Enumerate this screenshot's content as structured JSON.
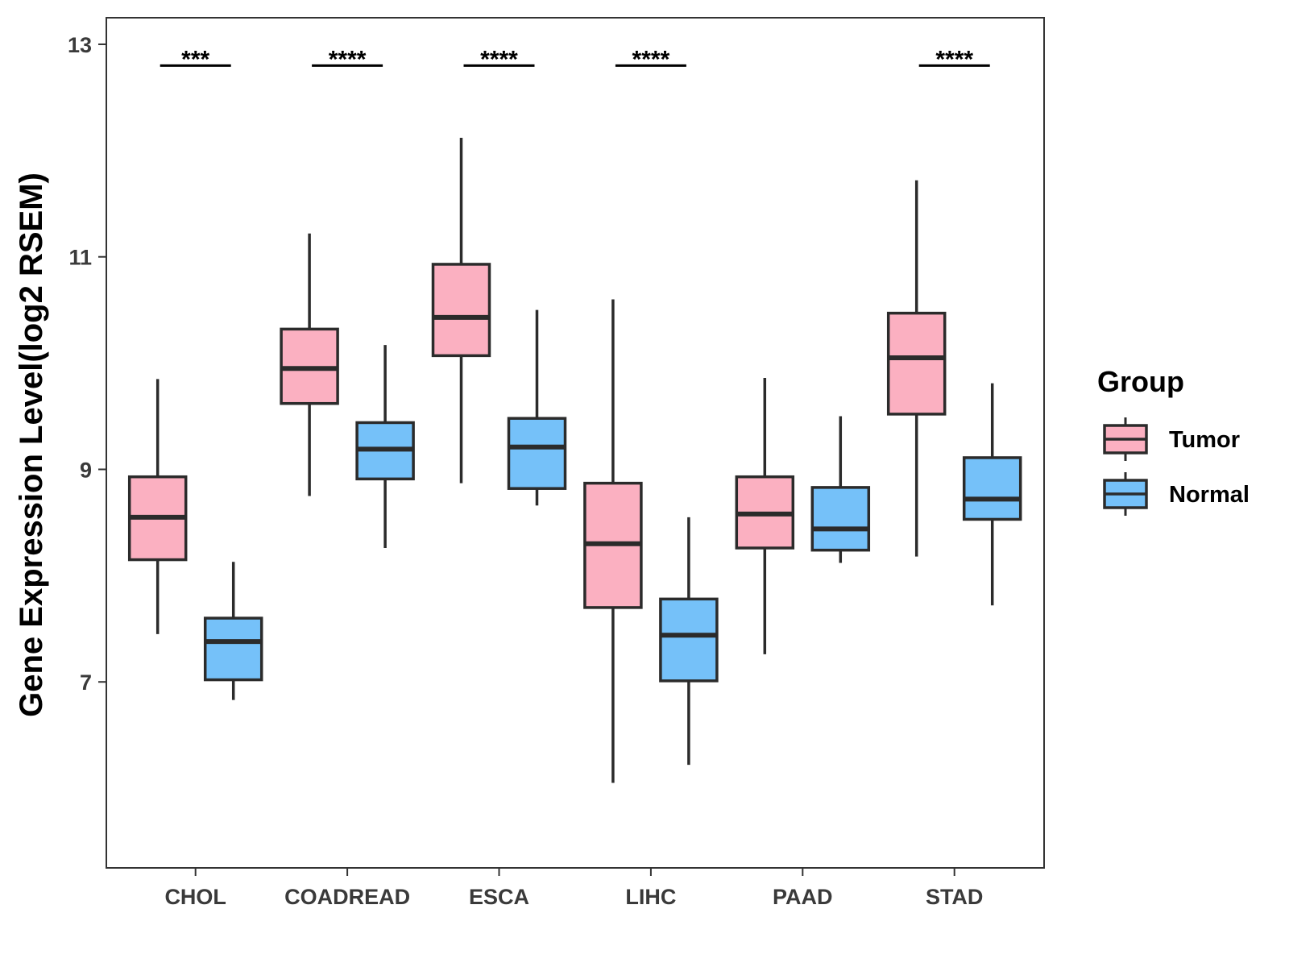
{
  "chart_data": {
    "type": "boxplot",
    "title": "",
    "xlabel": "",
    "ylabel": "Gene Expression Level(log2 RSEM)",
    "ylim": [
      5.25,
      13.25
    ],
    "yticks": [
      7,
      9,
      11,
      13
    ],
    "grid": false,
    "categories": [
      "CHOL",
      "COADREAD",
      "ESCA",
      "LIHC",
      "PAAD",
      "STAD"
    ],
    "legend": {
      "title": "Group",
      "position": "right",
      "entries": [
        {
          "name": "Tumor",
          "color": "#fbb0c1"
        },
        {
          "name": "Normal",
          "color": "#75c1f9"
        }
      ]
    },
    "series": [
      {
        "name": "Tumor",
        "color": "#fbb0c1",
        "boxes": [
          {
            "min": 7.45,
            "q1": 8.15,
            "median": 8.55,
            "q3": 8.93,
            "max": 9.85
          },
          {
            "min": 8.75,
            "q1": 9.62,
            "median": 9.95,
            "q3": 10.32,
            "max": 11.22
          },
          {
            "min": 8.87,
            "q1": 10.07,
            "median": 10.43,
            "q3": 10.93,
            "max": 12.12
          },
          {
            "min": 6.05,
            "q1": 7.7,
            "median": 8.3,
            "q3": 8.87,
            "max": 10.6
          },
          {
            "min": 7.26,
            "q1": 8.26,
            "median": 8.58,
            "q3": 8.93,
            "max": 9.86
          },
          {
            "min": 8.18,
            "q1": 9.52,
            "median": 10.05,
            "q3": 10.47,
            "max": 11.72
          }
        ]
      },
      {
        "name": "Normal",
        "color": "#75c1f9",
        "boxes": [
          {
            "min": 6.83,
            "q1": 7.02,
            "median": 7.38,
            "q3": 7.6,
            "max": 8.13
          },
          {
            "min": 8.26,
            "q1": 8.91,
            "median": 9.19,
            "q3": 9.44,
            "max": 10.17
          },
          {
            "min": 8.66,
            "q1": 8.82,
            "median": 9.21,
            "q3": 9.48,
            "max": 10.5
          },
          {
            "min": 6.22,
            "q1": 7.01,
            "median": 7.44,
            "q3": 7.78,
            "max": 8.55
          },
          {
            "min": 8.12,
            "q1": 8.24,
            "median": 8.44,
            "q3": 8.83,
            "max": 9.5
          },
          {
            "min": 7.72,
            "q1": 8.53,
            "median": 8.72,
            "q3": 9.11,
            "max": 9.81
          }
        ]
      }
    ],
    "significance": [
      {
        "category": "CHOL",
        "label": "***"
      },
      {
        "category": "COADREAD",
        "label": "****"
      },
      {
        "category": "ESCA",
        "label": "****"
      },
      {
        "category": "LIHC",
        "label": "****"
      },
      {
        "category": "PAAD",
        "label": ""
      },
      {
        "category": "STAD",
        "label": "****"
      }
    ],
    "significance_y": 12.8
  }
}
